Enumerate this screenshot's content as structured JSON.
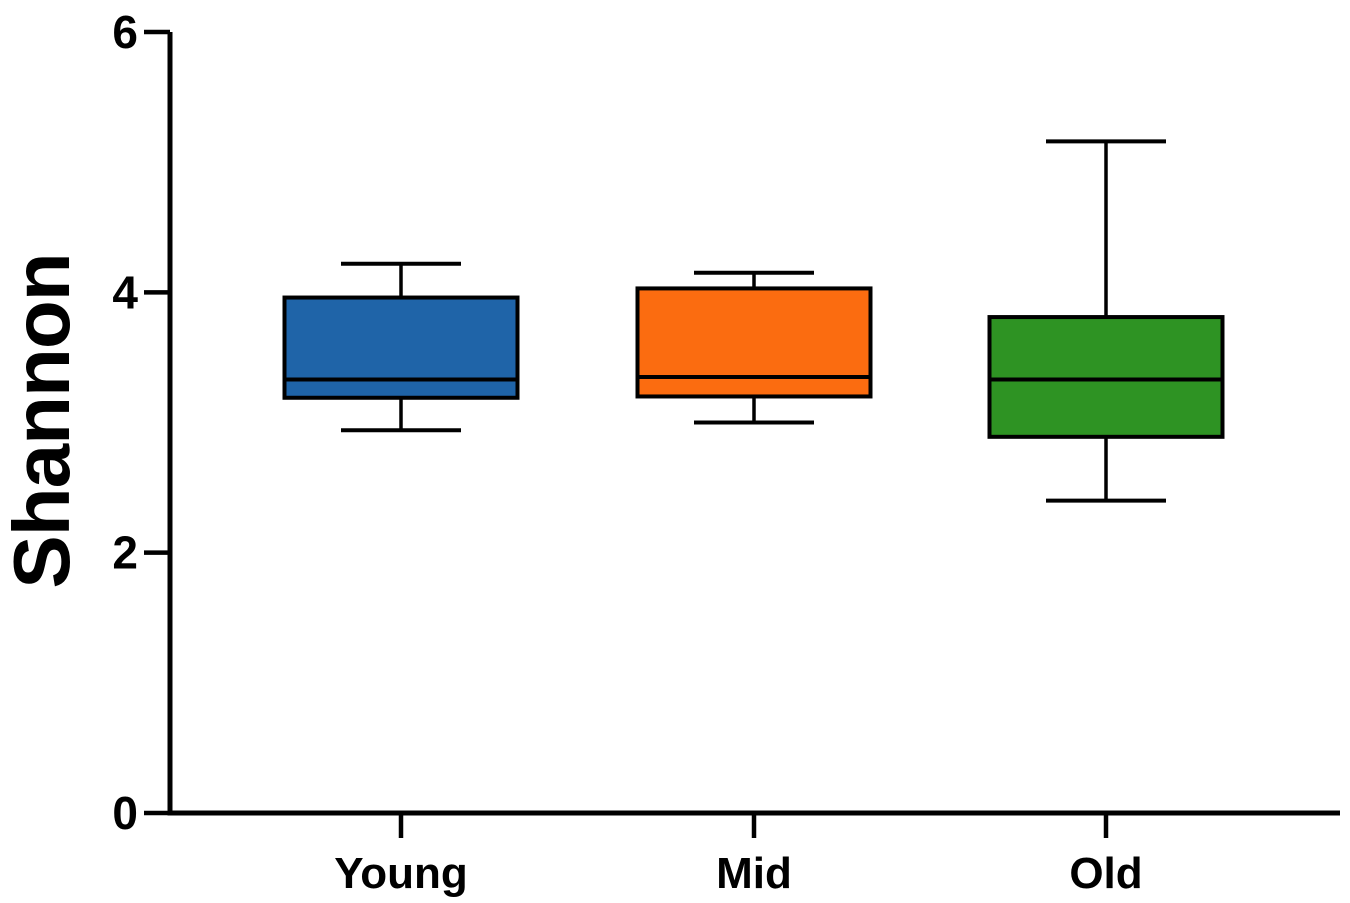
{
  "page": {
    "background_color": "#ffffff",
    "axis_color": "#000000"
  },
  "chart_data": {
    "type": "box",
    "title": "",
    "xlabel": "",
    "ylabel": "Shannon",
    "categories": [
      "Young",
      "Mid",
      "Old"
    ],
    "ylim": [
      0,
      6
    ],
    "yticks": [
      "0",
      "2",
      "4",
      "6"
    ],
    "grid": false,
    "legend": "none",
    "series": [
      {
        "name": "Young",
        "min": 2.94,
        "q1": 3.19,
        "median": 3.33,
        "q3": 3.96,
        "max": 4.22,
        "fill_color": "#1f64a8"
      },
      {
        "name": "Mid",
        "min": 3.0,
        "q1": 3.2,
        "median": 3.35,
        "q3": 4.03,
        "max": 4.15,
        "fill_color": "#fb6c10"
      },
      {
        "name": "Old",
        "min": 2.4,
        "q1": 2.89,
        "median": 3.33,
        "q3": 3.81,
        "max": 5.16,
        "fill_color": "#2e9323"
      }
    ],
    "stroke_color": "#000000"
  }
}
